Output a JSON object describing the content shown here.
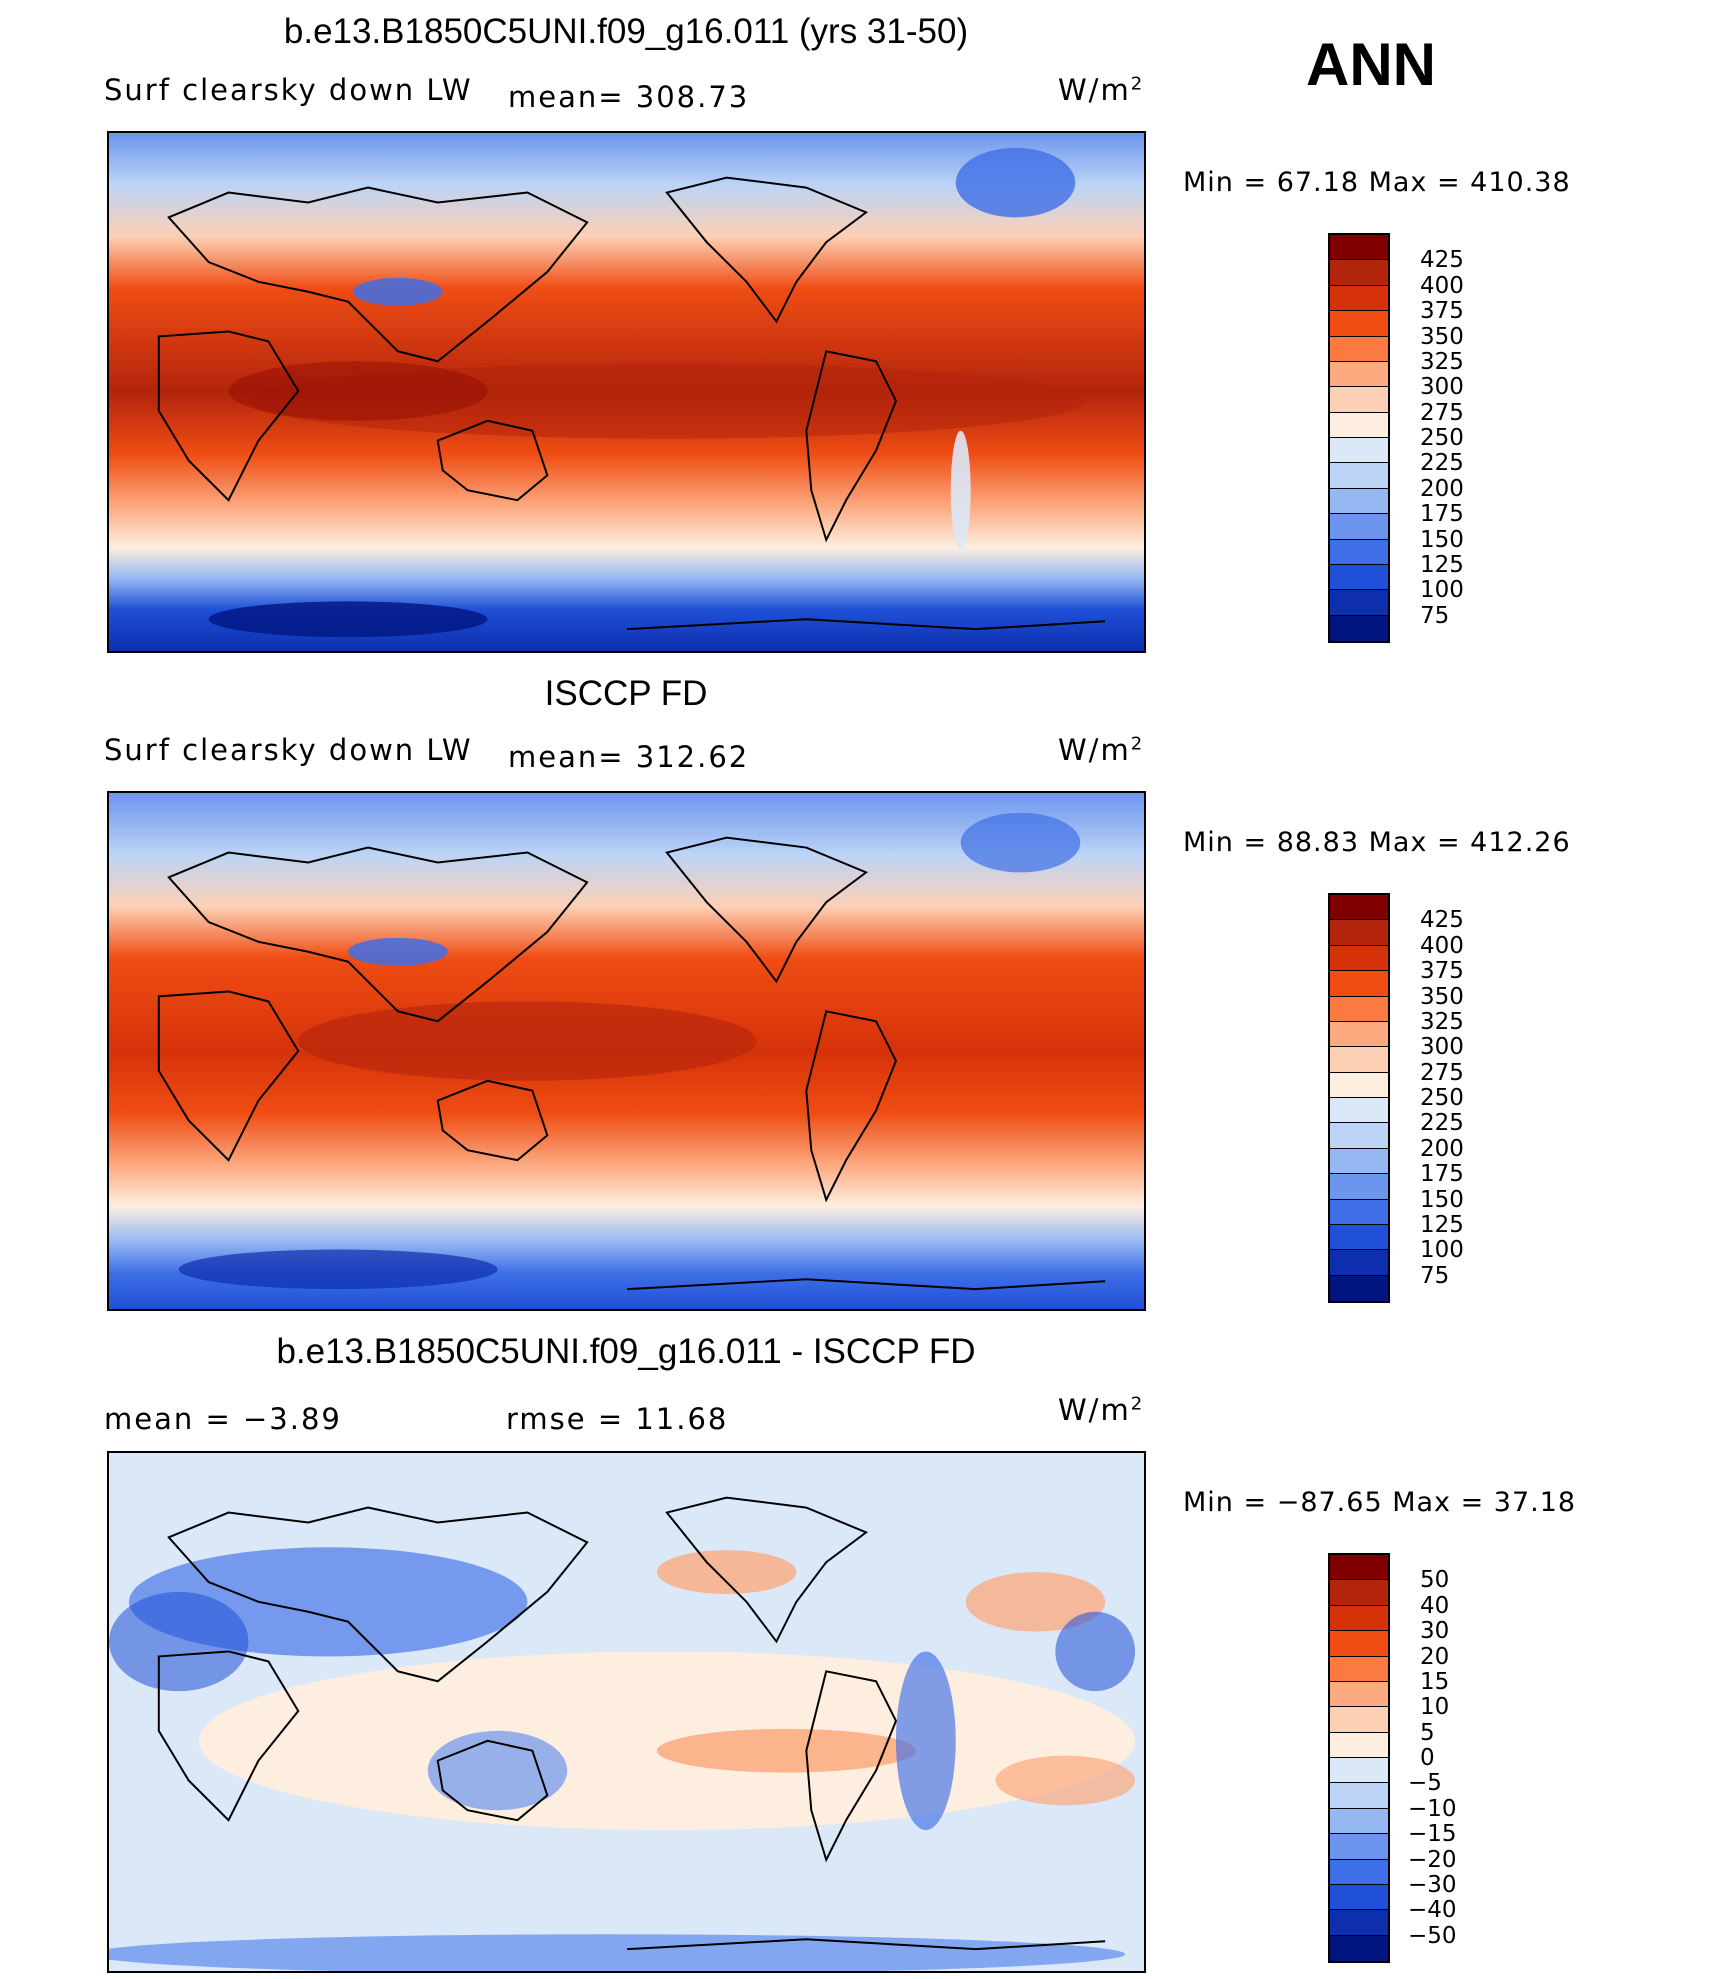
{
  "season": "ANN",
  "panels": [
    {
      "id": "model",
      "title": "b.e13.B1850C5UNI.f09_g16.011 (yrs 31-50)",
      "left_label": "Surf clearsky down LW",
      "center_label": "mean=  308.73",
      "units": "W/m",
      "units_sup": "2",
      "minmax": "Min =   67.18 Max = 410.38",
      "colors": [
        "#800000",
        "#b3240c",
        "#d6320a",
        "#ef4d14",
        "#fb7a42",
        "#fca97f",
        "#fdd0b5",
        "#fdeedf",
        "#dbe8f8",
        "#bcd4f6",
        "#95b8f2",
        "#6c95ee",
        "#3f6fe6",
        "#1f50d7",
        "#0d2fae",
        "#011581"
      ],
      "levels": [
        "425",
        "400",
        "375",
        "350",
        "325",
        "300",
        "275",
        "250",
        "225",
        "200",
        "175",
        "150",
        "125",
        "100",
        "75"
      ]
    },
    {
      "id": "obs",
      "title": "ISCCP FD",
      "left_label": "Surf clearsky down LW",
      "center_label": "mean=  312.62",
      "units": "W/m",
      "units_sup": "2",
      "minmax": "Min =   88.83 Max = 412.26",
      "colors": [
        "#800000",
        "#b3240c",
        "#d6320a",
        "#ef4d14",
        "#fb7a42",
        "#fca97f",
        "#fdd0b5",
        "#fdeedf",
        "#dbe8f8",
        "#bcd4f6",
        "#95b8f2",
        "#6c95ee",
        "#3f6fe6",
        "#1f50d7",
        "#0d2fae",
        "#011581"
      ],
      "levels": [
        "425",
        "400",
        "375",
        "350",
        "325",
        "300",
        "275",
        "250",
        "225",
        "200",
        "175",
        "150",
        "125",
        "100",
        "75"
      ]
    },
    {
      "id": "diff",
      "title": "b.e13.B1850C5UNI.f09_g16.011 - ISCCP FD",
      "left_label": "mean =   −3.89",
      "center_label": "rmse =   11.68",
      "units": "W/m",
      "units_sup": "2",
      "minmax": "Min = −87.65 Max =   37.18",
      "colors": [
        "#800000",
        "#b3240c",
        "#d6320a",
        "#ef4d14",
        "#fb7a42",
        "#fca97f",
        "#fdd0b5",
        "#fdeedf",
        "#dbe8f8",
        "#bcd4f6",
        "#95b8f2",
        "#6c95ee",
        "#3f6fe6",
        "#1f50d7",
        "#0d2fae",
        "#011581"
      ],
      "levels": [
        "50",
        "40",
        "30",
        "20",
        "15",
        "10",
        "5",
        "0",
        "−5",
        "−10",
        "−15",
        "−20",
        "−30",
        "−40",
        "−50"
      ]
    }
  ]
}
